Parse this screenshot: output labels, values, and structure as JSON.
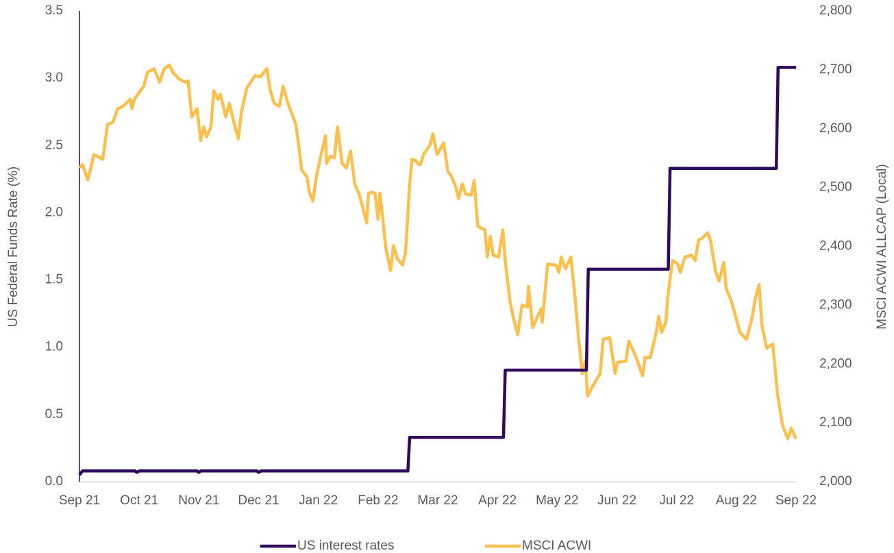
{
  "chart_data": {
    "type": "line",
    "y_label": "US Federal Funds Rate (%)",
    "y2_label": "MSCI ACWI ALLCAP (Local)",
    "xlim": [
      0,
      12
    ],
    "xticks": [
      {
        "value": 0,
        "label": "Sep 21"
      },
      {
        "value": 1,
        "label": "Oct 21"
      },
      {
        "value": 2,
        "label": "Nov 21"
      },
      {
        "value": 3,
        "label": "Dec 21"
      },
      {
        "value": 4,
        "label": "Jan 22"
      },
      {
        "value": 5,
        "label": "Feb 22"
      },
      {
        "value": 6,
        "label": "Mar 22"
      },
      {
        "value": 7,
        "label": "Apr 22"
      },
      {
        "value": 8,
        "label": "May 22"
      },
      {
        "value": 9,
        "label": "Jun 22"
      },
      {
        "value": 10,
        "label": "Jul 22"
      },
      {
        "value": 11,
        "label": "Aug 22"
      },
      {
        "value": 12,
        "label": "Sep 22"
      }
    ],
    "ylim": [
      0,
      3.5
    ],
    "yticks": [
      {
        "value": 0,
        "label": "0.0"
      },
      0.5,
      {
        "value": 1,
        "label": "1.0"
      },
      1.5,
      {
        "value": 2,
        "label": "2.0"
      },
      2.5,
      {
        "value": 3,
        "label": "3.0"
      },
      3.5
    ],
    "y2lim": [
      2000,
      2800
    ],
    "y2ticks": [
      {
        "value": 2000,
        "label": "2,000"
      },
      {
        "value": 2100,
        "label": "2,100"
      },
      {
        "value": 2200,
        "label": "2,200"
      },
      {
        "value": 2300,
        "label": "2,300"
      },
      {
        "value": 2400,
        "label": "2,400"
      },
      {
        "value": 2500,
        "label": "2,500"
      },
      {
        "value": 2600,
        "label": "2,600"
      },
      {
        "value": 2700,
        "label": "2,700"
      },
      {
        "value": 2800,
        "label": "2,800"
      }
    ],
    "legend": "bottom",
    "series": [
      {
        "name": "US interest rates",
        "color": "#2e0a5e",
        "axis": "y",
        "x": [
          0,
          0.05,
          0.93,
          0.96,
          1.0,
          1.97,
          2.0,
          2.03,
          2.97,
          3.0,
          3.04,
          5.5,
          5.53,
          7.1,
          7.13,
          8.49,
          8.52,
          9.86,
          9.89,
          11.67,
          11.7,
          12
        ],
        "values": [
          0.05,
          0.08,
          0.08,
          0.07,
          0.08,
          0.08,
          0.07,
          0.08,
          0.08,
          0.07,
          0.08,
          0.08,
          0.33,
          0.33,
          0.83,
          0.83,
          1.58,
          1.58,
          2.33,
          2.33,
          3.08,
          3.08
        ]
      },
      {
        "name": "MSCI ACWI",
        "color": "#ffbf4d",
        "axis": "y2",
        "x": [
          0,
          0.05,
          0.14,
          0.19,
          0.24,
          0.39,
          0.47,
          0.56,
          0.64,
          0.73,
          0.85,
          0.88,
          0.92,
          1.08,
          1.14,
          1.25,
          1.34,
          1.42,
          1.51,
          1.56,
          1.67,
          1.77,
          1.82,
          1.88,
          1.97,
          2.03,
          2.08,
          2.13,
          2.2,
          2.25,
          2.32,
          2.36,
          2.45,
          2.51,
          2.59,
          2.66,
          2.71,
          2.8,
          2.94,
          3.03,
          3.14,
          3.19,
          3.26,
          3.35,
          3.41,
          3.49,
          3.62,
          3.67,
          3.72,
          3.81,
          3.85,
          3.91,
          3.97,
          4.06,
          4.12,
          4.14,
          4.2,
          4.27,
          4.32,
          4.4,
          4.47,
          4.54,
          4.61,
          4.69,
          4.81,
          4.84,
          4.89,
          4.95,
          5.0,
          5.03,
          5.07,
          5.13,
          5.21,
          5.26,
          5.32,
          5.41,
          5.46,
          5.53,
          5.57,
          5.64,
          5.68,
          5.71,
          5.76,
          5.87,
          5.92,
          5.99,
          6.1,
          6.17,
          6.22,
          6.3,
          6.35,
          6.41,
          6.47,
          6.56,
          6.61,
          6.67,
          6.79,
          6.83,
          6.88,
          6.93,
          7.02,
          7.09,
          7.13,
          7.21,
          7.27,
          7.34,
          7.41,
          7.5,
          7.52,
          7.59,
          7.73,
          7.75,
          7.84,
          7.98,
          8.03,
          8.07,
          8.14,
          8.23,
          8.3,
          8.36,
          8.42,
          8.47,
          8.51,
          8.62,
          8.72,
          8.77,
          8.88,
          8.97,
          9.01,
          9.15,
          9.2,
          9.31,
          9.43,
          9.47,
          9.56,
          9.66,
          9.7,
          9.75,
          9.82,
          9.85,
          9.93,
          10.02,
          10.06,
          10.14,
          10.25,
          10.31,
          10.37,
          10.42,
          10.52,
          10.57,
          10.65,
          10.71,
          10.79,
          10.83,
          10.92,
          11.06,
          11.17,
          11.26,
          11.32,
          11.38,
          11.43,
          11.51,
          11.61,
          11.69,
          11.77,
          11.86,
          11.92,
          12
        ],
        "values": [
          2533,
          2539,
          2513,
          2533,
          2556,
          2548,
          2607,
          2611,
          2634,
          2638,
          2650,
          2634,
          2650,
          2673,
          2696,
          2702,
          2679,
          2702,
          2708,
          2696,
          2684,
          2679,
          2681,
          2620,
          2634,
          2580,
          2603,
          2586,
          2603,
          2664,
          2650,
          2658,
          2620,
          2643,
          2609,
          2583,
          2626,
          2669,
          2690,
          2688,
          2702,
          2667,
          2643,
          2638,
          2672,
          2643,
          2609,
          2574,
          2530,
          2518,
          2492,
          2477,
          2521,
          2562,
          2588,
          2541,
          2553,
          2550,
          2603,
          2541,
          2533,
          2562,
          2506,
          2487,
          2440,
          2490,
          2492,
          2490,
          2446,
          2490,
          2457,
          2397,
          2359,
          2401,
          2380,
          2368,
          2389,
          2505,
          2548,
          2545,
          2539,
          2539,
          2556,
          2572,
          2591,
          2556,
          2576,
          2527,
          2521,
          2502,
          2481,
          2506,
          2489,
          2487,
          2512,
          2434,
          2428,
          2382,
          2417,
          2385,
          2382,
          2428,
          2376,
          2306,
          2277,
          2250,
          2300,
          2297,
          2332,
          2262,
          2294,
          2271,
          2370,
          2368,
          2356,
          2382,
          2362,
          2382,
          2312,
          2242,
          2184,
          2205,
          2146,
          2167,
          2184,
          2242,
          2245,
          2184,
          2203,
          2205,
          2239,
          2215,
          2180,
          2211,
          2211,
          2254,
          2281,
          2254,
          2271,
          2312,
          2376,
          2370,
          2356,
          2382,
          2385,
          2376,
          2411,
          2413,
          2423,
          2409,
          2359,
          2341,
          2373,
          2329,
          2306,
          2254,
          2242,
          2277,
          2312,
          2335,
          2265,
          2227,
          2234,
          2149,
          2097,
          2073,
          2091,
          2073
        ]
      }
    ]
  }
}
